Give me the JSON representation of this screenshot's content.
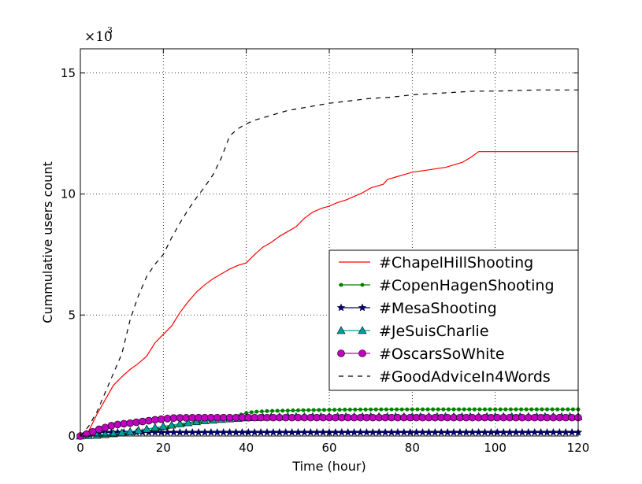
{
  "chart_data": {
    "type": "line",
    "title": "",
    "xlabel": "Time (hour)",
    "ylabel": "Cummulative users count",
    "y_scale_prefix": "×10",
    "y_scale_exponent": "3",
    "xlim": [
      0,
      120
    ],
    "ylim": [
      0,
      16000
    ],
    "x_ticks": [
      0,
      20,
      40,
      60,
      80,
      100,
      120
    ],
    "y_ticks": [
      0,
      5000,
      10000,
      15000
    ],
    "x_tick_labels": [
      "0",
      "20",
      "40",
      "60",
      "80",
      "100",
      "120"
    ],
    "y_tick_labels": [
      "0",
      "5",
      "10",
      "15"
    ],
    "grid": true,
    "legend_position": "center-right",
    "series": [
      {
        "name": "#ChapelHillShooting",
        "color": "#ff0000",
        "dash": "solid",
        "marker": "none",
        "x": [
          0,
          2,
          4,
          6,
          8,
          10,
          12,
          14,
          16,
          18,
          20,
          22,
          24,
          26,
          28,
          30,
          32,
          34,
          36,
          38,
          40,
          42,
          44,
          46,
          48,
          50,
          52,
          54,
          56,
          58,
          60,
          62,
          64,
          66,
          68,
          70,
          72,
          73,
          74,
          76,
          78,
          80,
          82,
          84,
          86,
          88,
          90,
          92,
          94,
          96,
          100,
          110,
          120
        ],
        "y": [
          0,
          200,
          900,
          1500,
          2100,
          2450,
          2750,
          3000,
          3300,
          3850,
          4200,
          4550,
          5100,
          5550,
          5950,
          6250,
          6500,
          6700,
          6900,
          7050,
          7150,
          7500,
          7800,
          8000,
          8250,
          8450,
          8650,
          9000,
          9250,
          9400,
          9500,
          9650,
          9750,
          9900,
          10050,
          10250,
          10350,
          10400,
          10600,
          10700,
          10800,
          10900,
          10950,
          11000,
          11050,
          11100,
          11200,
          11300,
          11500,
          11750,
          11750,
          11750,
          11750
        ]
      },
      {
        "name": "#CopenHagenShooting",
        "color": "#008000",
        "dash": "solid",
        "marker": "point",
        "x": [
          0,
          5,
          10,
          15,
          20,
          25,
          30,
          35,
          38,
          40,
          42,
          45,
          50,
          55,
          60,
          65,
          70,
          80,
          90,
          100,
          110,
          120
        ],
        "y": [
          0,
          30,
          80,
          180,
          320,
          470,
          620,
          720,
          850,
          950,
          1000,
          1030,
          1050,
          1070,
          1080,
          1090,
          1095,
          1100,
          1100,
          1100,
          1100,
          1100
        ]
      },
      {
        "name": "#MesaShooting",
        "color": "#000080",
        "dash": "solid",
        "marker": "star",
        "x": [
          0,
          1,
          2,
          3,
          5,
          10,
          20,
          40,
          60,
          80,
          100,
          120
        ],
        "y": [
          0,
          50,
          100,
          130,
          150,
          150,
          150,
          150,
          150,
          150,
          150,
          150
        ]
      },
      {
        "name": "#JeSuisCharlie",
        "color": "#00a0a0",
        "dash": "solid",
        "marker": "triangle",
        "x": [
          0,
          5,
          10,
          15,
          20,
          25,
          30,
          35,
          40,
          45,
          50,
          60,
          70,
          80,
          90,
          100,
          110,
          120
        ],
        "y": [
          0,
          40,
          130,
          260,
          400,
          530,
          630,
          700,
          750,
          780,
          800,
          800,
          800,
          800,
          800,
          800,
          800,
          800
        ]
      },
      {
        "name": "#OscarsSoWhite",
        "color": "#c000c0",
        "dash": "solid",
        "marker": "circle",
        "x": [
          0,
          2,
          4,
          6,
          8,
          10,
          12,
          14,
          16,
          18,
          20,
          22,
          24,
          30,
          40,
          50,
          60,
          70,
          80,
          90,
          100,
          110,
          120
        ],
        "y": [
          0,
          100,
          250,
          350,
          450,
          500,
          530,
          580,
          620,
          670,
          700,
          740,
          750,
          760,
          760,
          760,
          760,
          760,
          760,
          760,
          760,
          760,
          760
        ]
      },
      {
        "name": "#GoodAdviceIn4Words",
        "color": "#000000",
        "dash": "dashed",
        "marker": "none",
        "x": [
          0,
          2,
          4,
          6,
          8,
          10,
          12,
          14,
          16,
          18,
          20,
          22,
          24,
          26,
          28,
          30,
          32,
          34,
          36,
          38,
          40,
          42,
          45,
          50,
          55,
          60,
          65,
          70,
          75,
          80,
          85,
          90,
          95,
          100,
          110,
          120
        ],
        "y": [
          0,
          400,
          1000,
          1800,
          2600,
          3400,
          4800,
          5800,
          6600,
          7100,
          7500,
          8200,
          8800,
          9350,
          9850,
          10300,
          10800,
          11500,
          12400,
          12700,
          12900,
          13050,
          13200,
          13450,
          13600,
          13750,
          13850,
          13950,
          14000,
          14100,
          14150,
          14200,
          14250,
          14250,
          14300,
          14300
        ]
      }
    ]
  }
}
